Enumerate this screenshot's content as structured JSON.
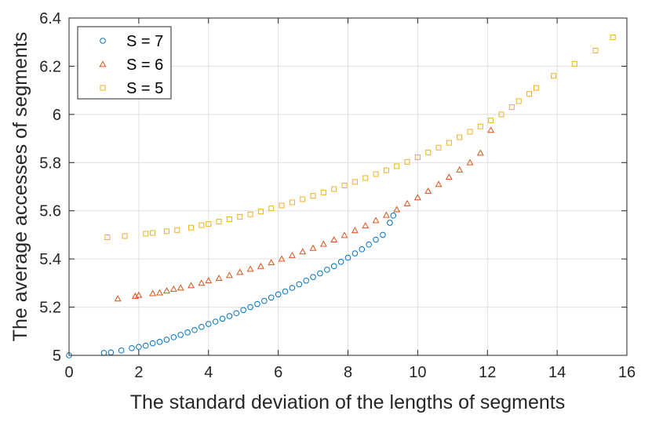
{
  "chart_data": {
    "type": "scatter",
    "title": "",
    "xlabel": "The standard deviation of the lengths of segments",
    "ylabel": "The average accesses of segments",
    "xlim": [
      0,
      16
    ],
    "ylim": [
      5,
      6.4
    ],
    "xticks": [
      "0",
      "2",
      "4",
      "6",
      "8",
      "10",
      "12",
      "14",
      "16"
    ],
    "yticks": [
      "5",
      "5.2",
      "5.4",
      "5.6",
      "5.8",
      "6",
      "6.2",
      "6.4"
    ],
    "grid": true,
    "legend_position": "top-left",
    "series": [
      {
        "name": "S = 7",
        "marker": "circle",
        "color": "#0072BD",
        "points": [
          [
            0.0,
            5.0
          ],
          [
            1.0,
            5.01
          ],
          [
            1.2,
            5.012
          ],
          [
            1.5,
            5.02
          ],
          [
            1.8,
            5.03
          ],
          [
            2.0,
            5.035
          ],
          [
            2.2,
            5.04
          ],
          [
            2.4,
            5.05
          ],
          [
            2.6,
            5.056
          ],
          [
            2.8,
            5.065
          ],
          [
            3.0,
            5.075
          ],
          [
            3.2,
            5.085
          ],
          [
            3.4,
            5.095
          ],
          [
            3.6,
            5.105
          ],
          [
            3.8,
            5.118
          ],
          [
            4.0,
            5.13
          ],
          [
            4.2,
            5.14
          ],
          [
            4.4,
            5.152
          ],
          [
            4.6,
            5.163
          ],
          [
            4.8,
            5.175
          ],
          [
            5.0,
            5.188
          ],
          [
            5.2,
            5.2
          ],
          [
            5.4,
            5.213
          ],
          [
            5.6,
            5.226
          ],
          [
            5.8,
            5.24
          ],
          [
            6.0,
            5.253
          ],
          [
            6.2,
            5.265
          ],
          [
            6.4,
            5.28
          ],
          [
            6.6,
            5.295
          ],
          [
            6.8,
            5.31
          ],
          [
            7.0,
            5.325
          ],
          [
            7.2,
            5.34
          ],
          [
            7.4,
            5.355
          ],
          [
            7.6,
            5.37
          ],
          [
            7.8,
            5.388
          ],
          [
            8.0,
            5.405
          ],
          [
            8.2,
            5.423
          ],
          [
            8.4,
            5.44
          ],
          [
            8.6,
            5.46
          ],
          [
            8.8,
            5.48
          ],
          [
            9.0,
            5.5
          ],
          [
            9.2,
            5.55
          ],
          [
            9.3,
            5.58
          ]
        ]
      },
      {
        "name": "S = 6",
        "marker": "triangle",
        "color": "#D95319",
        "points": [
          [
            1.4,
            5.235
          ],
          [
            1.9,
            5.246
          ],
          [
            2.0,
            5.25
          ],
          [
            2.4,
            5.257
          ],
          [
            2.6,
            5.26
          ],
          [
            2.8,
            5.268
          ],
          [
            3.0,
            5.275
          ],
          [
            3.2,
            5.28
          ],
          [
            3.5,
            5.29
          ],
          [
            3.8,
            5.3
          ],
          [
            4.0,
            5.31
          ],
          [
            4.3,
            5.32
          ],
          [
            4.6,
            5.332
          ],
          [
            4.9,
            5.345
          ],
          [
            5.2,
            5.358
          ],
          [
            5.5,
            5.37
          ],
          [
            5.8,
            5.385
          ],
          [
            6.1,
            5.4
          ],
          [
            6.4,
            5.415
          ],
          [
            6.7,
            5.43
          ],
          [
            7.0,
            5.445
          ],
          [
            7.3,
            5.462
          ],
          [
            7.6,
            5.48
          ],
          [
            7.9,
            5.498
          ],
          [
            8.2,
            5.518
          ],
          [
            8.5,
            5.538
          ],
          [
            8.8,
            5.56
          ],
          [
            9.1,
            5.582
          ],
          [
            9.4,
            5.605
          ],
          [
            9.7,
            5.63
          ],
          [
            10.0,
            5.655
          ],
          [
            10.3,
            5.682
          ],
          [
            10.6,
            5.71
          ],
          [
            10.9,
            5.74
          ],
          [
            11.2,
            5.77
          ],
          [
            11.5,
            5.8
          ],
          [
            11.8,
            5.84
          ],
          [
            12.1,
            5.935
          ]
        ]
      },
      {
        "name": "S = 5",
        "marker": "square",
        "color": "#EDB120",
        "points": [
          [
            1.1,
            5.49
          ],
          [
            1.6,
            5.495
          ],
          [
            2.2,
            5.505
          ],
          [
            2.4,
            5.508
          ],
          [
            2.8,
            5.515
          ],
          [
            3.1,
            5.52
          ],
          [
            3.5,
            5.53
          ],
          [
            3.8,
            5.54
          ],
          [
            4.0,
            5.545
          ],
          [
            4.3,
            5.555
          ],
          [
            4.6,
            5.565
          ],
          [
            4.9,
            5.575
          ],
          [
            5.2,
            5.585
          ],
          [
            5.5,
            5.597
          ],
          [
            5.8,
            5.61
          ],
          [
            6.1,
            5.622
          ],
          [
            6.4,
            5.635
          ],
          [
            6.7,
            5.648
          ],
          [
            7.0,
            5.662
          ],
          [
            7.3,
            5.676
          ],
          [
            7.6,
            5.69
          ],
          [
            7.9,
            5.705
          ],
          [
            8.2,
            5.72
          ],
          [
            8.5,
            5.736
          ],
          [
            8.8,
            5.752
          ],
          [
            9.1,
            5.768
          ],
          [
            9.4,
            5.785
          ],
          [
            9.7,
            5.803
          ],
          [
            10.0,
            5.822
          ],
          [
            10.3,
            5.842
          ],
          [
            10.6,
            5.862
          ],
          [
            10.9,
            5.882
          ],
          [
            11.2,
            5.905
          ],
          [
            11.5,
            5.928
          ],
          [
            11.8,
            5.95
          ],
          [
            12.1,
            5.975
          ],
          [
            12.4,
            6.0
          ],
          [
            12.7,
            6.03
          ],
          [
            12.9,
            6.055
          ],
          [
            13.2,
            6.085
          ],
          [
            13.4,
            6.11
          ],
          [
            13.9,
            6.16
          ],
          [
            14.5,
            6.21
          ],
          [
            15.1,
            6.265
          ],
          [
            15.6,
            6.32
          ]
        ]
      }
    ]
  }
}
